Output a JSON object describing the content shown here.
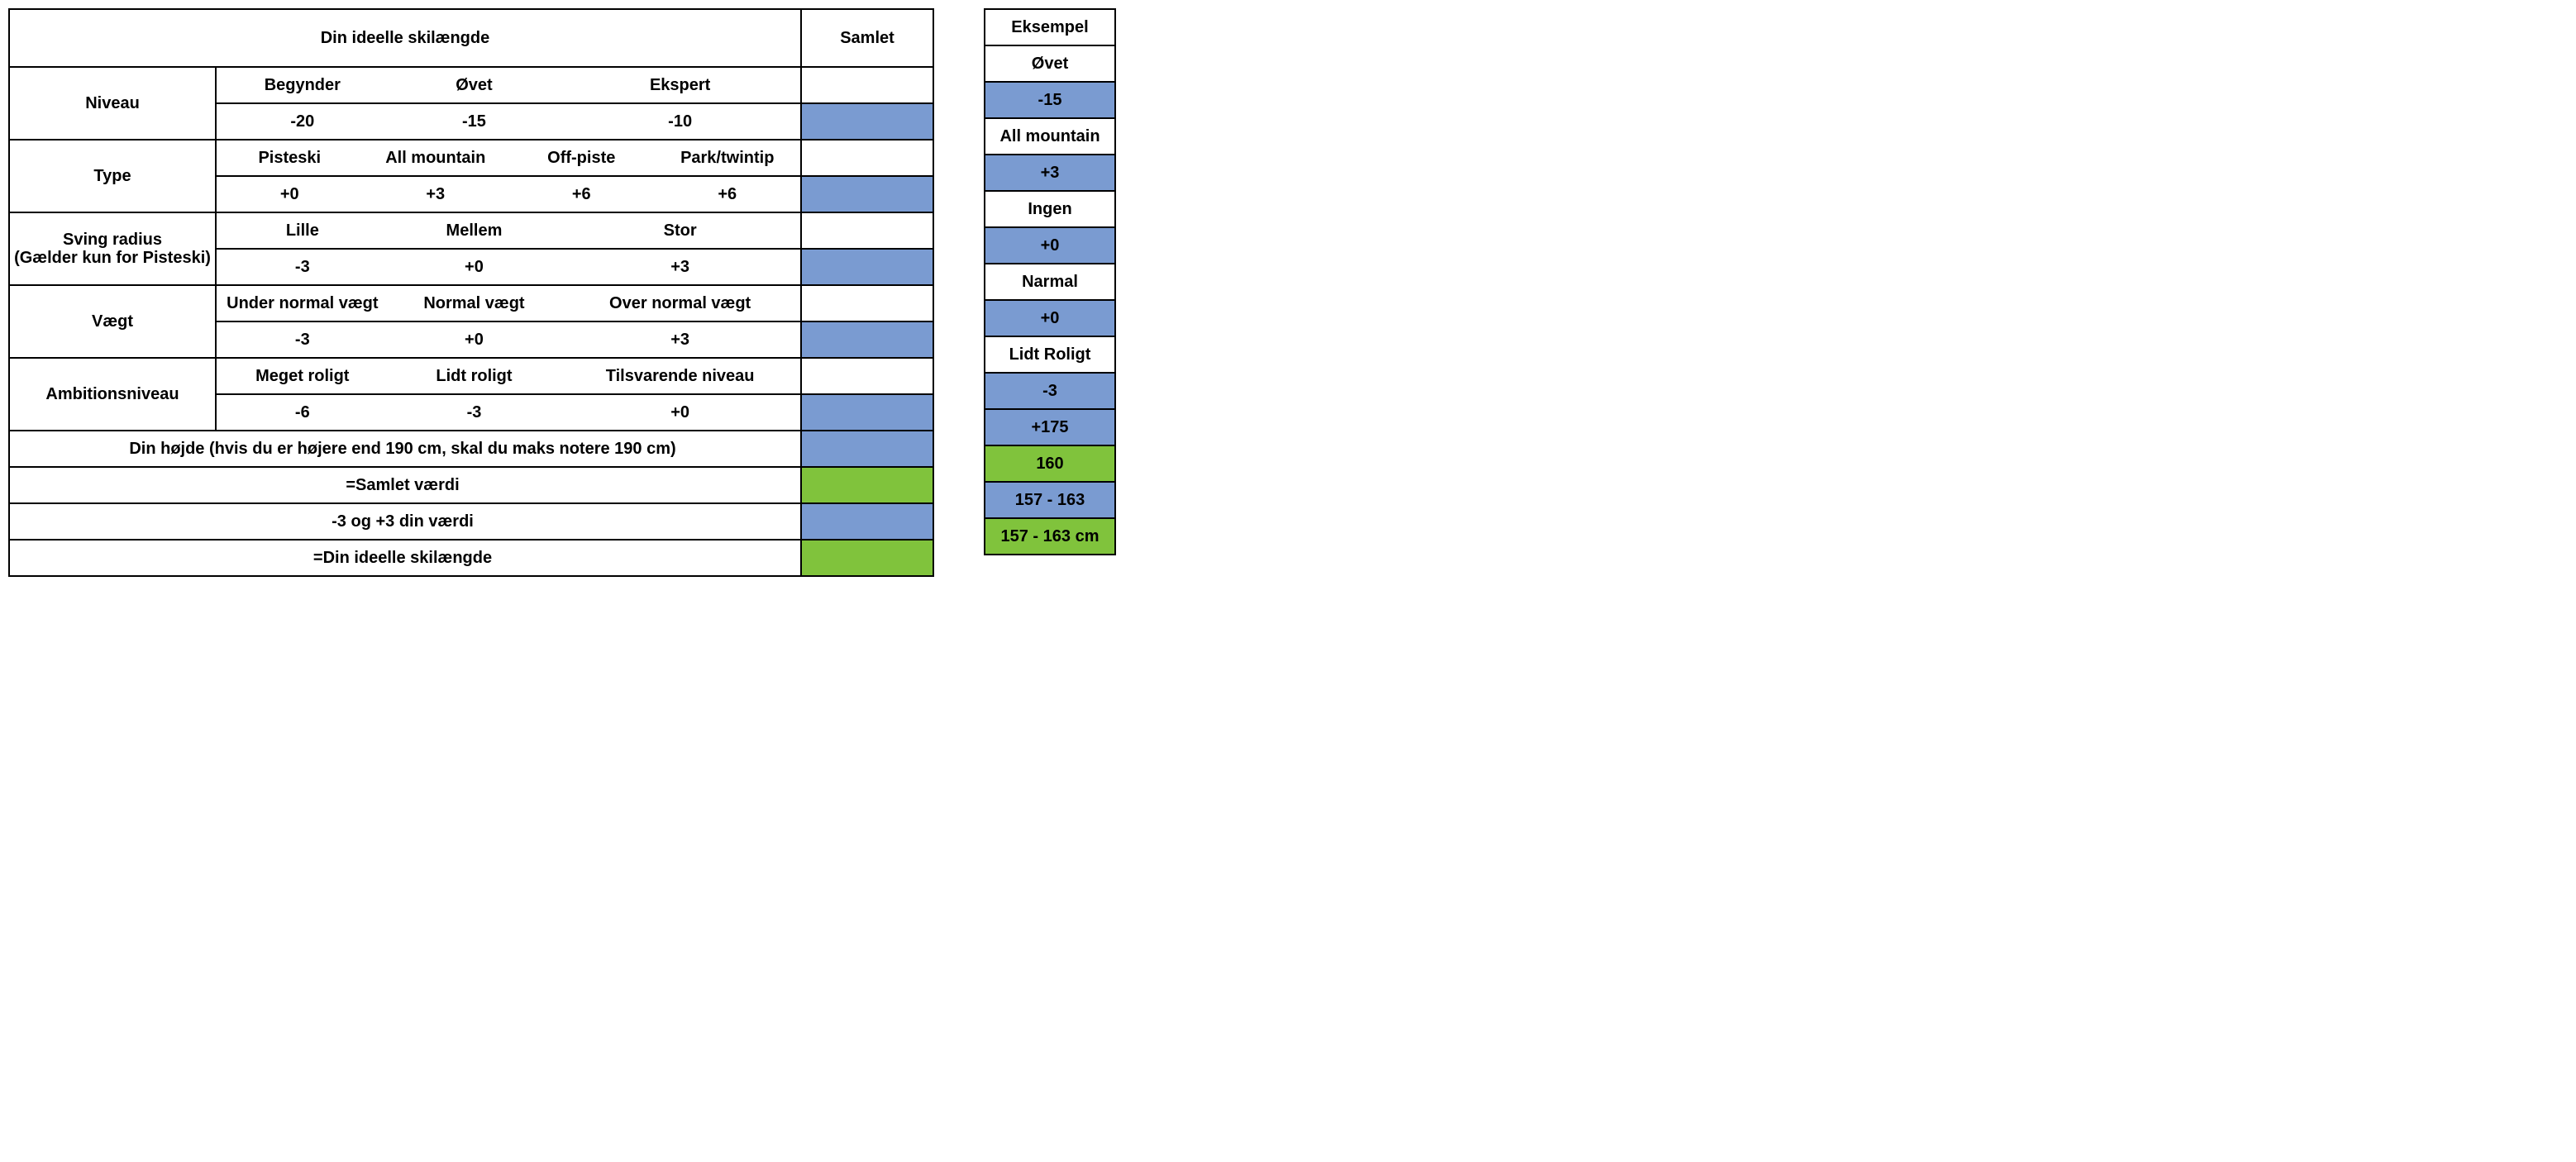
{
  "colors": {
    "blue": "#7a9bd1",
    "green": "#80c33c",
    "border": "#000000",
    "bg": "#ffffff",
    "text": "#000000"
  },
  "title": "Din ideelle skilængde",
  "samlet_header": "Samlet",
  "example_header": "Eksempel",
  "rows": {
    "niveau": {
      "label": "Niveau",
      "opts": [
        "Begynder",
        "Øvet",
        "Ekspert"
      ],
      "vals": [
        "-20",
        "-15",
        "-10"
      ],
      "ex_opt": "Øvet",
      "ex_val": "-15"
    },
    "type": {
      "label": "Type",
      "opts": [
        "Pisteski",
        "All mountain",
        "Off-piste",
        "Park/twintip"
      ],
      "vals": [
        "+0",
        "+3",
        "+6",
        "+6"
      ],
      "ex_opt": "All mountain",
      "ex_val": "+3"
    },
    "sving": {
      "label_line1": "Sving radius",
      "label_line2": "(Gælder kun for Pisteski)",
      "opts": [
        "Lille",
        "Mellem",
        "Stor"
      ],
      "vals": [
        "-3",
        "+0",
        "+3"
      ],
      "ex_opt": "Ingen",
      "ex_val": "+0"
    },
    "vaegt": {
      "label": "Vægt",
      "opts": [
        "Under normal vægt",
        "Normal vægt",
        "Over normal vægt"
      ],
      "vals": [
        "-3",
        "+0",
        "+3"
      ],
      "ex_opt": "Narmal",
      "ex_val": "+0"
    },
    "ambition": {
      "label": "Ambitionsniveau",
      "opts": [
        "Meget roligt",
        "Lidt roligt",
        "Tilsvarende niveau"
      ],
      "vals": [
        "-6",
        "-3",
        "+0"
      ],
      "ex_opt": "Lidt Roligt",
      "ex_val": "-3"
    }
  },
  "height_label": "Din højde (hvis du er højere end 190 cm, skal du maks notere 190 cm)",
  "height_ex": "+175",
  "result": {
    "samlet_label": "=Samlet værdi",
    "range_label": "-3 og +3 din værdi",
    "ideal_label": "=Din ideelle skilængde",
    "ex_samlet": "160",
    "ex_range": "157 - 163",
    "ex_ideal": "157 - 163 cm"
  }
}
